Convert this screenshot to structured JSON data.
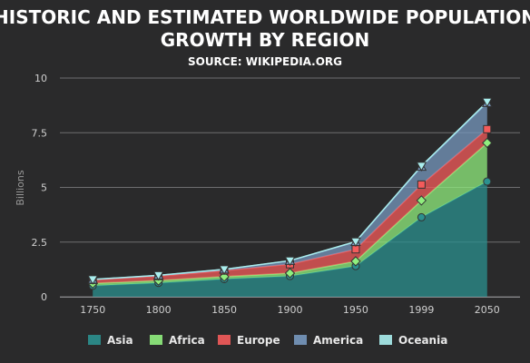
{
  "chart_data": {
    "type": "area",
    "stacked": true,
    "title_lines": [
      "HISTORIC AND ESTIMATED WORLDWIDE POPULATION",
      "GROWTH BY REGION"
    ],
    "subtitle": "SOURCE: WIKIPEDIA.ORG",
    "ylabel": "Billions",
    "xlabel": "",
    "categories": [
      "1750",
      "1800",
      "1850",
      "1900",
      "1950",
      "1999",
      "2050"
    ],
    "ylim": [
      0,
      10
    ],
    "yticks": [
      0,
      2.5,
      5,
      7.5,
      10
    ],
    "ytick_labels": [
      "0",
      "2.5",
      "5",
      "7.5",
      "10"
    ],
    "grid": true,
    "legend_position": "bottom",
    "series": [
      {
        "name": "Asia",
        "color": "#2b908f",
        "marker": "circle",
        "values": [
          0.502,
          0.635,
          0.809,
          0.947,
          1.402,
          3.634,
          5.268
        ]
      },
      {
        "name": "Africa",
        "color": "#90ee7e",
        "marker": "diamond",
        "values": [
          0.106,
          0.107,
          0.111,
          0.133,
          0.221,
          0.767,
          1.766
        ]
      },
      {
        "name": "Europe",
        "color": "#f45b5b",
        "marker": "square",
        "values": [
          0.163,
          0.203,
          0.276,
          0.408,
          0.547,
          0.729,
          0.628
        ]
      },
      {
        "name": "America",
        "color": "#7798bf",
        "marker": "triangle",
        "values": [
          0.018,
          0.031,
          0.054,
          0.156,
          0.339,
          0.818,
          1.201
        ]
      },
      {
        "name": "Oceania",
        "color": "#aaeeee",
        "marker": "triangle-down",
        "values": [
          0.002,
          0.002,
          0.002,
          0.006,
          0.013,
          0.03,
          0.046
        ]
      }
    ]
  }
}
